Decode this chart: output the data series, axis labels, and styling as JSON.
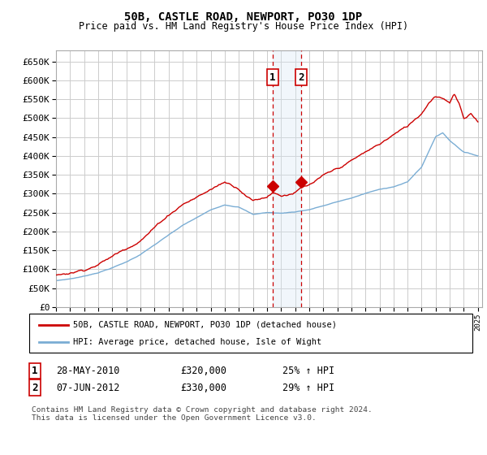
{
  "title": "50B, CASTLE ROAD, NEWPORT, PO30 1DP",
  "subtitle": "Price paid vs. HM Land Registry's House Price Index (HPI)",
  "legend_line1": "50B, CASTLE ROAD, NEWPORT, PO30 1DP (detached house)",
  "legend_line2": "HPI: Average price, detached house, Isle of Wight",
  "annotation1_label": "1",
  "annotation1_date": "28-MAY-2010",
  "annotation1_price": "£320,000",
  "annotation1_hpi": "25% ↑ HPI",
  "annotation2_label": "2",
  "annotation2_date": "07-JUN-2012",
  "annotation2_price": "£330,000",
  "annotation2_hpi": "29% ↑ HPI",
  "footer": "Contains HM Land Registry data © Crown copyright and database right 2024.\nThis data is licensed under the Open Government Licence v3.0.",
  "ylim": [
    0,
    680000
  ],
  "yticks": [
    0,
    50000,
    100000,
    150000,
    200000,
    250000,
    300000,
    350000,
    400000,
    450000,
    500000,
    550000,
    600000,
    650000
  ],
  "red_color": "#cc0000",
  "blue_color": "#7aadd4",
  "grid_color": "#cccccc",
  "bg_color": "#ffffff",
  "plot_bg_color": "#ffffff",
  "sale1_year": 2010.41,
  "sale1_value": 320000,
  "sale2_year": 2012.44,
  "sale2_value": 330000,
  "shade_color": "#d8e8f5",
  "dashed_color": "#cc0000",
  "sale1_marker_value": 320000,
  "sale2_marker_value": 330000
}
